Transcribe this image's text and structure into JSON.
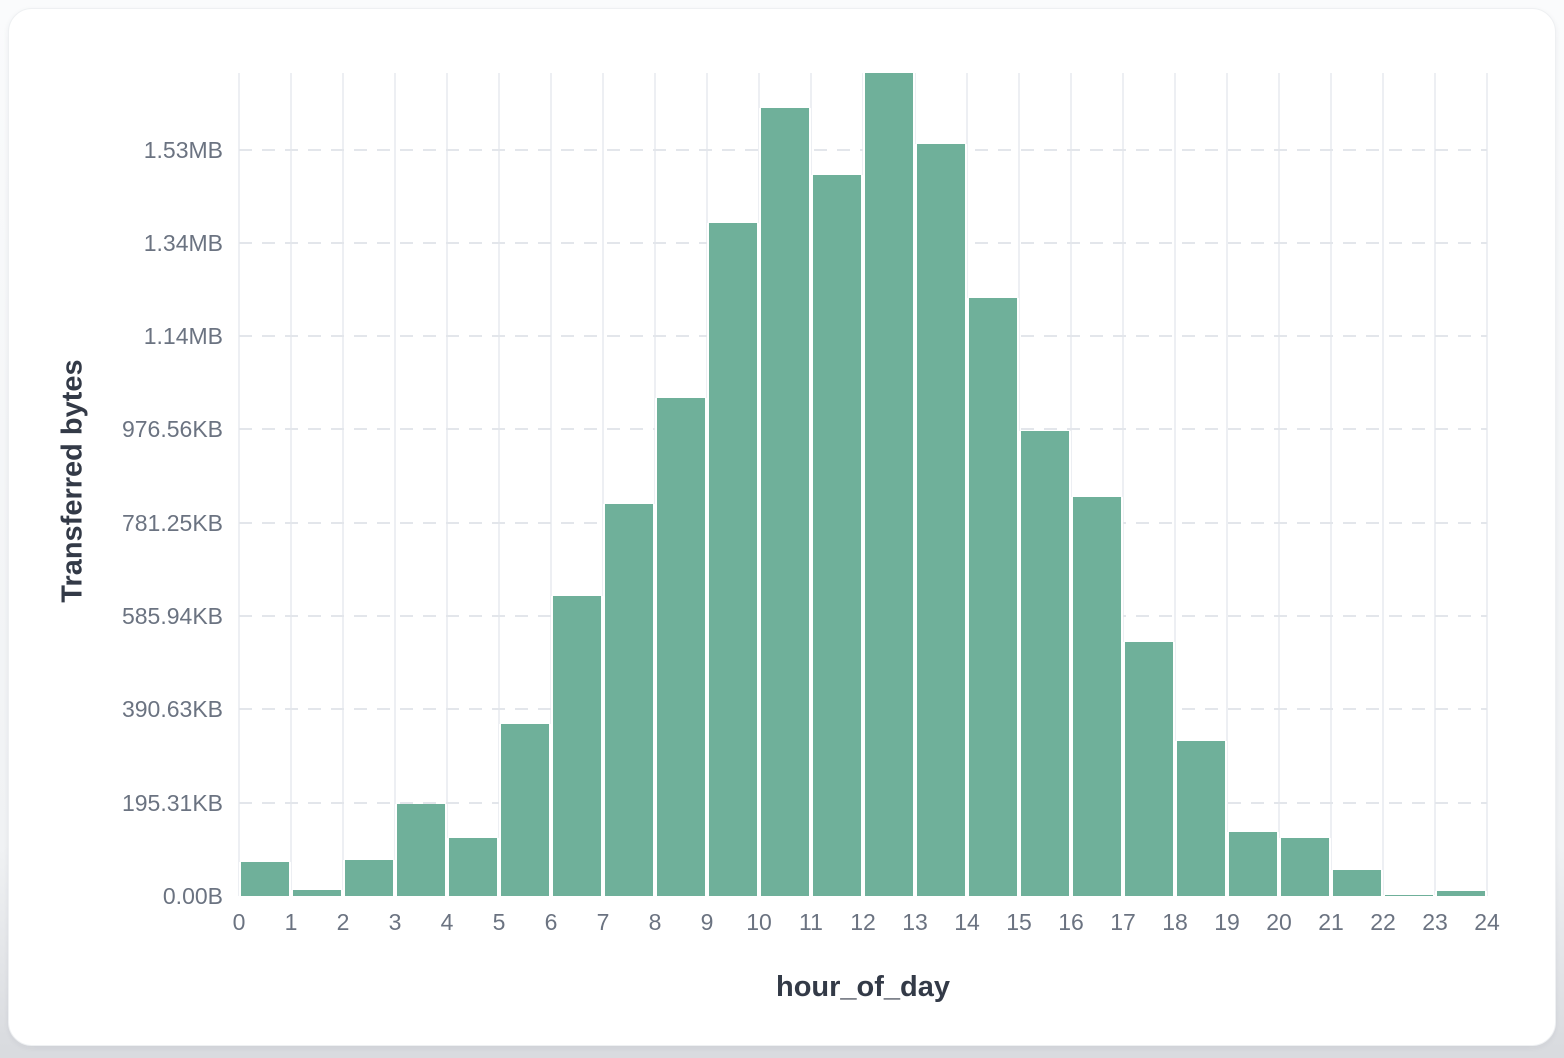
{
  "chart_data": {
    "type": "bar",
    "title": "",
    "xlabel": "hour_of_day",
    "ylabel": "Transferred bytes",
    "x": [
      0,
      1,
      2,
      3,
      4,
      5,
      6,
      7,
      8,
      9,
      10,
      11,
      12,
      13,
      14,
      15,
      16,
      17,
      18,
      19,
      20,
      21,
      22,
      23
    ],
    "values_bytes": [
      73000,
      13000,
      77000,
      197000,
      124000,
      369000,
      643000,
      840000,
      1067000,
      1442000,
      1688000,
      1546000,
      1764000,
      1612000,
      1281000,
      997000,
      855000,
      544000,
      332000,
      137000,
      124000,
      56000,
      3000,
      11000
    ],
    "x_tick_labels": [
      "0",
      "1",
      "2",
      "3",
      "4",
      "5",
      "6",
      "7",
      "8",
      "9",
      "10",
      "11",
      "12",
      "13",
      "14",
      "15",
      "16",
      "17",
      "18",
      "19",
      "20",
      "21",
      "22",
      "23",
      "24"
    ],
    "y_tick_labels": [
      "0.00B",
      "195.31KB",
      "390.63KB",
      "585.94KB",
      "781.25KB",
      "976.56KB",
      "1.14MB",
      "1.34MB",
      "1.53MB"
    ],
    "y_tick_values_bytes": [
      0,
      200000,
      400000,
      600000,
      800000,
      1000000,
      1200000,
      1400000,
      1600000
    ],
    "ylim_bytes": [
      0,
      1764000
    ],
    "grid": true,
    "legend_position": "none",
    "colors": {
      "bar": "#6FB09A",
      "vertical_grid": "#edeff3",
      "horizontal_grid_dashed": "#e3e6eb",
      "tick_text": "#6b7381",
      "axis_title_text": "#333a47",
      "card_background": "#ffffff"
    }
  }
}
